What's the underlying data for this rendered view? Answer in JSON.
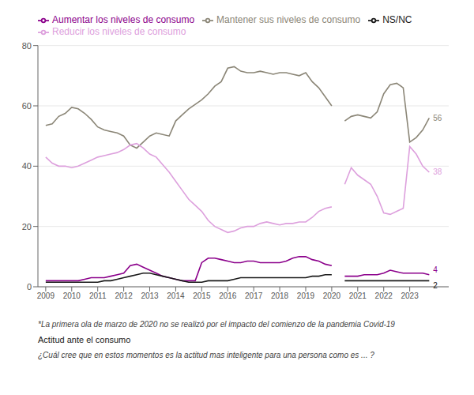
{
  "chart_data": {
    "type": "line",
    "x": [
      2009.0,
      2009.25,
      2009.5,
      2009.75,
      2010.0,
      2010.25,
      2010.5,
      2010.75,
      2011.0,
      2011.25,
      2011.5,
      2011.75,
      2012.0,
      2012.25,
      2012.5,
      2012.75,
      2013.0,
      2013.25,
      2013.5,
      2013.75,
      2014.0,
      2014.25,
      2014.5,
      2014.75,
      2015.0,
      2015.25,
      2015.5,
      2015.75,
      2016.0,
      2016.25,
      2016.5,
      2016.75,
      2017.0,
      2017.25,
      2017.5,
      2017.75,
      2018.0,
      2018.25,
      2018.5,
      2018.75,
      2019.0,
      2019.25,
      2019.5,
      2019.75,
      2020.0,
      2020.25,
      2020.5,
      2020.75,
      2021.0,
      2021.25,
      2021.5,
      2021.75,
      2022.0,
      2022.25,
      2022.5,
      2022.75,
      2023.0,
      2023.25,
      2023.5,
      2023.75
    ],
    "series": [
      {
        "name": "Mantener sus niveles de consumo",
        "color": "#8B8677",
        "values": [
          53.5,
          54.0,
          56.5,
          57.5,
          59.5,
          59.0,
          57.5,
          55.5,
          53.0,
          52.0,
          51.5,
          51.0,
          50.0,
          47.0,
          46.0,
          48.0,
          50.0,
          51.0,
          50.5,
          50.0,
          55.0,
          57.0,
          59.0,
          60.5,
          62.0,
          64.0,
          66.5,
          68.0,
          72.5,
          73.0,
          71.5,
          71.0,
          71.0,
          71.5,
          71.0,
          70.5,
          71.0,
          71.0,
          70.5,
          70.0,
          71.0,
          68.0,
          66.0,
          63.0,
          60.0,
          null,
          55.0,
          56.5,
          57.0,
          56.5,
          56.0,
          58.0,
          64.0,
          67.0,
          67.5,
          66.0,
          48.0,
          49.5,
          52.0,
          56.0
        ]
      },
      {
        "name": "Reducir los niveles de consumo",
        "color": "#DDA0DD",
        "values": [
          43.0,
          41.0,
          40.0,
          40.0,
          39.5,
          40.0,
          41.0,
          42.0,
          43.0,
          43.5,
          44.0,
          44.5,
          45.5,
          47.0,
          47.5,
          46.0,
          44.0,
          43.0,
          40.5,
          38.0,
          35.0,
          32.0,
          29.0,
          27.0,
          25.0,
          22.0,
          20.0,
          19.0,
          18.0,
          18.5,
          19.5,
          20.0,
          20.0,
          21.0,
          21.5,
          21.0,
          20.5,
          21.0,
          21.0,
          21.5,
          21.5,
          23.0,
          25.0,
          26.0,
          26.5,
          null,
          34.0,
          39.5,
          37.0,
          35.5,
          34.0,
          30.0,
          24.5,
          24.0,
          25.0,
          26.0,
          46.5,
          44.0,
          40.0,
          38.0
        ]
      },
      {
        "name": "Aumentar los niveles de consumo",
        "color": "#8B008B",
        "values": [
          2.0,
          2.0,
          2.0,
          2.0,
          2.0,
          2.0,
          2.5,
          3.0,
          3.0,
          3.0,
          3.5,
          4.0,
          4.5,
          7.0,
          7.5,
          6.5,
          5.5,
          4.5,
          3.5,
          3.0,
          2.5,
          2.0,
          2.0,
          2.0,
          8.0,
          9.5,
          9.5,
          9.0,
          8.5,
          8.0,
          8.0,
          8.5,
          8.5,
          8.0,
          8.0,
          8.0,
          8.0,
          8.5,
          9.5,
          10.0,
          10.0,
          9.0,
          8.5,
          7.5,
          7.0,
          null,
          3.5,
          3.5,
          3.5,
          4.0,
          4.0,
          4.0,
          4.5,
          5.5,
          5.0,
          4.5,
          4.5,
          4.5,
          4.5,
          4.0
        ]
      },
      {
        "name": "NS/NC",
        "color": "#1a1a1a",
        "values": [
          1.5,
          1.5,
          1.5,
          1.5,
          1.5,
          1.5,
          1.5,
          1.5,
          1.5,
          2.0,
          2.0,
          2.5,
          3.0,
          3.5,
          4.0,
          4.5,
          4.5,
          4.0,
          3.5,
          3.0,
          2.5,
          2.0,
          1.5,
          1.5,
          1.5,
          2.0,
          2.0,
          2.0,
          2.0,
          2.5,
          3.0,
          3.0,
          3.0,
          3.0,
          3.0,
          3.0,
          3.0,
          3.0,
          3.0,
          3.0,
          3.0,
          3.5,
          3.5,
          4.0,
          4.0,
          null,
          2.0,
          2.0,
          2.0,
          2.0,
          2.0,
          2.0,
          2.0,
          2.0,
          2.0,
          2.0,
          2.0,
          2.0,
          2.0,
          2.0
        ]
      }
    ],
    "annotations": [
      {
        "text": "56",
        "x": 2023.75,
        "y": 56,
        "color": "#8B8677"
      },
      {
        "text": "38",
        "x": 2023.75,
        "y": 38,
        "color": "#DDA0DD"
      },
      {
        "text": "4",
        "x": 2023.75,
        "y": 4,
        "color": "#8B008B"
      },
      {
        "text": "2",
        "x": 2023.75,
        "y": 2,
        "color": "#1a1a1a"
      }
    ],
    "footnotes": [
      "*La primera ola de marzo de 2020 no se realizó por el impacto del comienzo de la pandemia Covid-19",
      "Actitud ante el consumo",
      "¿Cuál cree que en estos momentos es la actitud mas inteligente para una persona como es ... ?"
    ],
    "xlim": [
      2008.7,
      2024.5
    ],
    "xticks": [
      2009,
      2010,
      2011,
      2012,
      2013,
      2014,
      2015,
      2016,
      2017,
      2018,
      2019,
      2020,
      2021,
      2022,
      2023
    ],
    "ylim": [
      0,
      80
    ],
    "yticks": [
      0,
      20,
      40,
      60,
      80
    ],
    "grid": true
  }
}
